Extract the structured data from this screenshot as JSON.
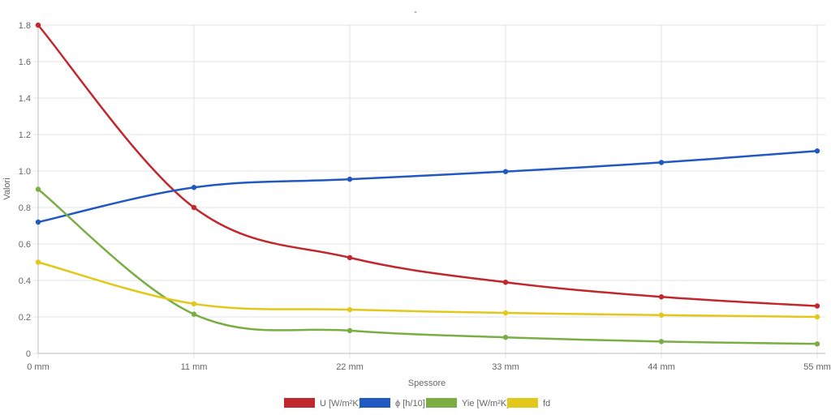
{
  "chart_data": {
    "type": "line",
    "title": "-",
    "xlabel": "Spessore",
    "ylabel": "Valori",
    "categories": [
      "0 mm",
      "11 mm",
      "22 mm",
      "33 mm",
      "44 mm",
      "55 mm"
    ],
    "ylim": [
      0,
      1.8
    ],
    "y_ticks": [
      "0",
      "0.2",
      "0.4",
      "0.6",
      "0.8",
      "1.0",
      "1.2",
      "1.4",
      "1.6",
      "1.8"
    ],
    "grid": true,
    "legend_position": "bottom",
    "series": [
      {
        "name": "U [W/m²K]",
        "color": "#c0282d",
        "values": [
          1.8,
          0.8,
          0.525,
          0.39,
          0.31,
          0.26
        ]
      },
      {
        "name": "ϕ [h/10]",
        "color": "#2158c1",
        "values": [
          0.72,
          0.91,
          0.955,
          0.997,
          1.047,
          1.11
        ]
      },
      {
        "name": "Yie [W/m²K]",
        "color": "#7aae45",
        "values": [
          0.9,
          0.215,
          0.125,
          0.088,
          0.065,
          0.052
        ]
      },
      {
        "name": "fd",
        "color": "#e2c81a",
        "values": [
          0.5,
          0.272,
          0.24,
          0.222,
          0.21,
          0.2
        ]
      }
    ]
  }
}
